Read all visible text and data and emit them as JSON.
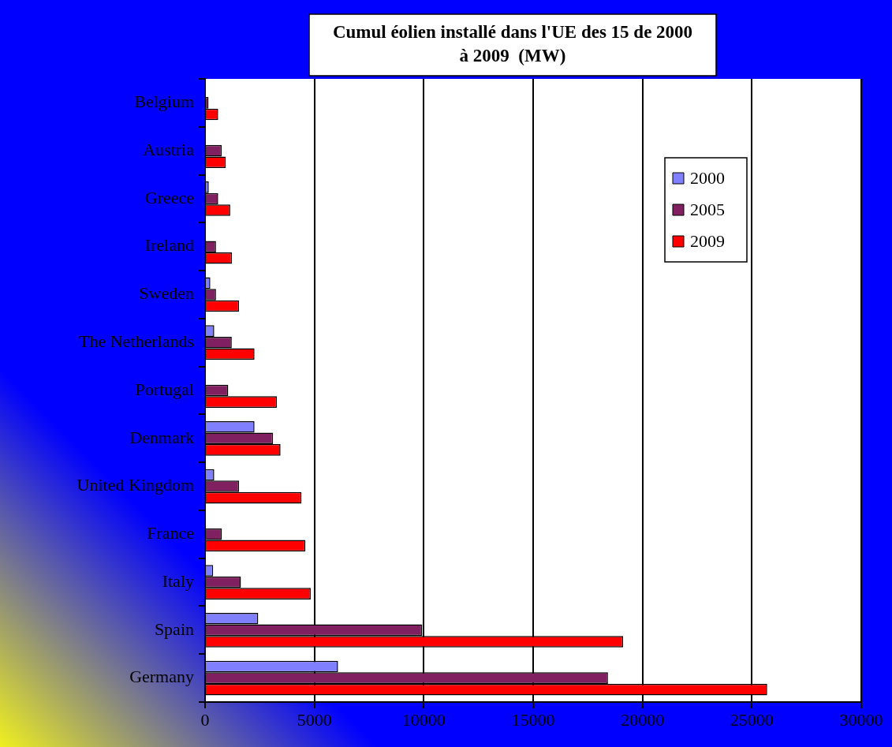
{
  "chart_data": {
    "type": "bar",
    "orientation": "horizontal",
    "title": "Cumul éolien installé dans l'UE des 15 de 2000 à 2009  (MW)",
    "categories": [
      "Belgium",
      "Austria",
      "Greece",
      "Ireland",
      "Sweden",
      "The Netherlands",
      "Portugal",
      "Denmark",
      "United Kingdom",
      "France",
      "Italy",
      "Spain",
      "Germany"
    ],
    "series": [
      {
        "name": "2000",
        "color": "#8080ff",
        "values": [
          0,
          0,
          170,
          0,
          240,
          420,
          0,
          2260,
          420,
          0,
          370,
          2430,
          6080
        ]
      },
      {
        "name": "2005",
        "color": "#802060",
        "values": [
          160,
          760,
          600,
          500,
          500,
          1220,
          1060,
          3110,
          1550,
          770,
          1640,
          9930,
          18420
        ]
      },
      {
        "name": "2009",
        "color": "#ff0000",
        "values": [
          600,
          950,
          1150,
          1230,
          1550,
          2260,
          3280,
          3450,
          4410,
          4590,
          4830,
          19110,
          25700
        ]
      }
    ],
    "xlim": [
      0,
      30000
    ],
    "xticks": [
      0,
      5000,
      10000,
      15000,
      20000,
      25000,
      30000
    ],
    "grid": "x",
    "legend": "right"
  }
}
